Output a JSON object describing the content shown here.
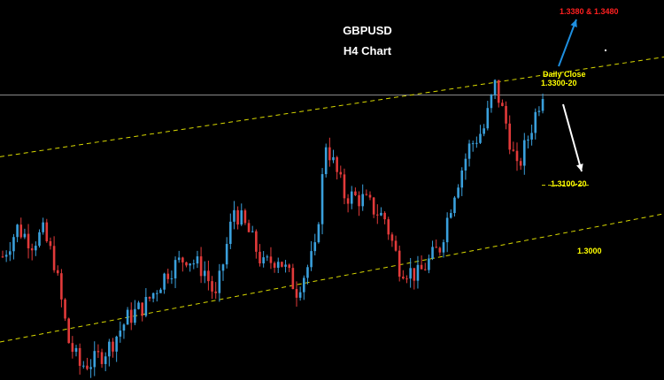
{
  "chart_data": {
    "type": "candlestick",
    "title": "GBPUSD",
    "subtitle": "H4 Chart",
    "ylim": [
      1.27,
      1.35
    ],
    "annotations": {
      "upside_target": "1.3380 & 1.3480",
      "daily_close_title": "Daily Close",
      "daily_close_level": "1.3300-20",
      "downside_target": "1.3100-20",
      "channel_support": "1.3000"
    },
    "levels": {
      "horizontal_resistance": 1.33,
      "downside_target": 1.311,
      "channel_support_label": 1.3
    },
    "channel": {
      "upper": {
        "from": 1.317,
        "to": 1.338
      },
      "lower": {
        "from": 1.278,
        "to": 1.305
      }
    },
    "candle_count": 148,
    "anchors": [
      [
        0,
        1.296
      ],
      [
        4,
        1.302
      ],
      [
        8,
        1.299
      ],
      [
        11,
        1.301
      ],
      [
        14,
        1.295
      ],
      [
        18,
        1.278
      ],
      [
        21,
        1.273
      ],
      [
        25,
        1.274
      ],
      [
        29,
        1.277
      ],
      [
        34,
        1.283
      ],
      [
        39,
        1.286
      ],
      [
        45,
        1.293
      ],
      [
        50,
        1.296
      ],
      [
        55,
        1.293
      ],
      [
        58,
        1.287
      ],
      [
        63,
        1.306
      ],
      [
        67,
        1.301
      ],
      [
        71,
        1.294
      ],
      [
        75,
        1.296
      ],
      [
        80,
        1.289
      ],
      [
        85,
        1.297
      ],
      [
        88,
        1.32
      ],
      [
        93,
        1.309
      ],
      [
        98,
        1.308
      ],
      [
        104,
        1.304
      ],
      [
        108,
        1.294
      ],
      [
        113,
        1.292
      ],
      [
        119,
        1.298
      ],
      [
        123,
        1.31
      ],
      [
        127,
        1.319
      ],
      [
        131,
        1.323
      ],
      [
        134,
        1.332
      ],
      [
        137,
        1.324
      ],
      [
        140,
        1.314
      ],
      [
        143,
        1.321
      ],
      [
        147,
        1.331
      ]
    ],
    "colors": {
      "up": "#3aa0dc",
      "down": "#e23a3a",
      "channel": "#d8d800",
      "level": "#8a8a8a",
      "arrow_up": "#1e8fe0",
      "arrow_down": "#ffffff",
      "background": "#000000"
    }
  }
}
